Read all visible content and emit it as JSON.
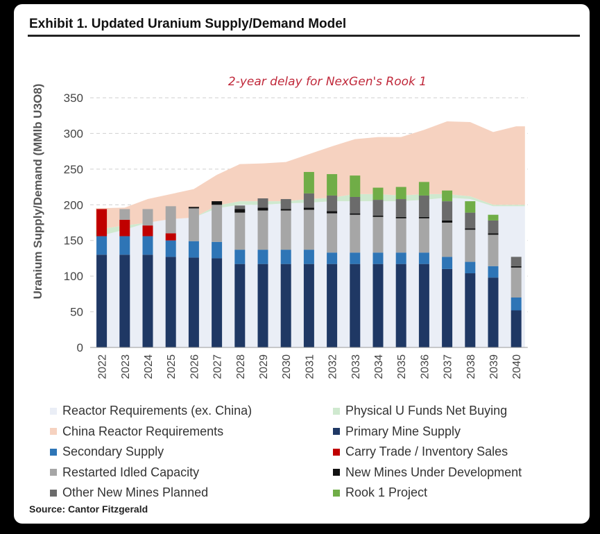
{
  "title": "Exhibit 1. Updated Uranium Supply/Demand Model",
  "source": "Source: Cantor Fitzgerald",
  "chart_data": {
    "type": "bar",
    "stacked": true,
    "title": "Exhibit 1. Updated Uranium Supply/Demand Model",
    "xlabel": "",
    "ylabel": "Uranium Supply/Demand (MMlb U3O8)",
    "ylim": [
      0,
      350
    ],
    "yticks": [
      0,
      50,
      100,
      150,
      200,
      250,
      300,
      350
    ],
    "grid": true,
    "annotation": "2-year delay for NexGen's Rook 1",
    "categories": [
      "2022",
      "2023",
      "2024",
      "2025",
      "2026",
      "2027",
      "2028",
      "2029",
      "2030",
      "2031",
      "2032",
      "2033",
      "2034",
      "2035",
      "2036",
      "2037",
      "2038",
      "2039",
      "2040"
    ],
    "areas": [
      {
        "name": "Reactor Requirements (ex. China)",
        "color": "#eaeef6",
        "values": [
          155,
          165,
          175,
          180,
          182,
          195,
          200,
          200,
          202,
          203,
          205,
          205,
          205,
          205,
          207,
          210,
          208,
          198,
          198
        ]
      },
      {
        "name": "Physical U Funds Net Buying",
        "color": "#cfe9cf",
        "values": [
          10,
          6,
          0,
          0,
          0,
          4,
          5,
          5,
          3,
          5,
          5,
          10,
          10,
          8,
          8,
          5,
          4,
          2,
          2
        ]
      },
      {
        "name": "China Reactor Requirements",
        "color": "#f6d2c0",
        "values": [
          30,
          25,
          33,
          35,
          40,
          43,
          52,
          53,
          55,
          63,
          72,
          77,
          80,
          82,
          90,
          102,
          104,
          102,
          110
        ]
      }
    ],
    "series": [
      {
        "name": "Primary Mine Supply",
        "color": "#1f3864",
        "values": [
          130,
          130,
          130,
          127,
          126,
          125,
          117,
          117,
          117,
          117,
          117,
          117,
          117,
          117,
          117,
          110,
          104,
          98,
          52
        ]
      },
      {
        "name": "Secondary Supply",
        "color": "#2e75b6",
        "values": [
          26,
          26,
          26,
          23,
          23,
          23,
          20,
          20,
          20,
          20,
          16,
          16,
          16,
          16,
          16,
          17,
          16,
          16,
          18
        ]
      },
      {
        "name": "Carry Trade / Inventory Sales",
        "color": "#c00000",
        "values": [
          38,
          23,
          15,
          10,
          0,
          0,
          0,
          0,
          0,
          0,
          0,
          0,
          0,
          0,
          0,
          0,
          0,
          0,
          0
        ]
      },
      {
        "name": "Restarted Idled Capacity",
        "color": "#a6a6a6",
        "values": [
          0,
          15,
          23,
          38,
          46,
          52,
          52,
          55,
          55,
          56,
          55,
          53,
          50,
          48,
          48,
          48,
          45,
          44,
          42
        ]
      },
      {
        "name": "New Mines Under Development",
        "color": "#111111",
        "values": [
          0,
          0,
          0,
          0,
          2,
          5,
          5,
          4,
          2,
          3,
          3,
          2,
          2,
          2,
          2,
          3,
          2,
          2,
          2
        ]
      },
      {
        "name": "Other New Mines Planned",
        "color": "#6b6b6b",
        "values": [
          0,
          0,
          0,
          0,
          0,
          0,
          5,
          13,
          14,
          20,
          22,
          23,
          22,
          25,
          30,
          27,
          22,
          18,
          13
        ]
      },
      {
        "name": "Rook 1 Project",
        "color": "#70ad47",
        "values": [
          0,
          0,
          0,
          0,
          0,
          0,
          0,
          0,
          0,
          30,
          30,
          30,
          17,
          17,
          19,
          15,
          16,
          8,
          0
        ]
      }
    ],
    "legend": [
      "Reactor Requirements (ex. China)",
      "Physical U Funds Net Buying",
      "China Reactor Requirements",
      "Primary Mine Supply",
      "Secondary Supply",
      "Carry Trade / Inventory Sales",
      "Restarted Idled Capacity",
      "New Mines Under Development",
      "Other New Mines Planned",
      "Rook 1 Project"
    ]
  }
}
